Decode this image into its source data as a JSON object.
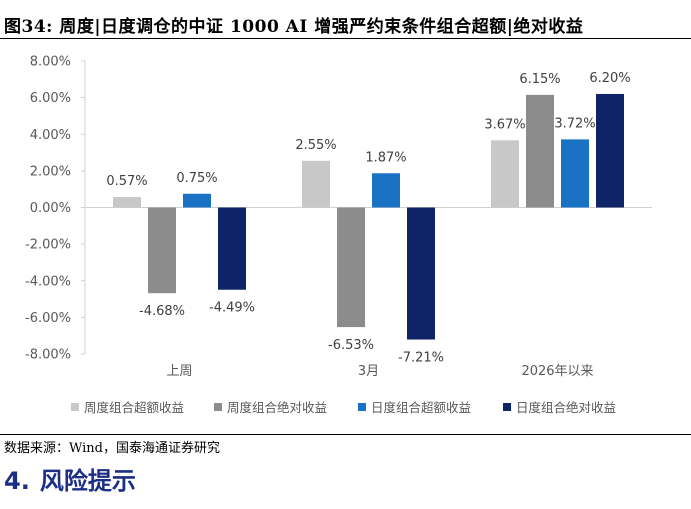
{
  "header": {
    "top_text_fragment": "",
    "figure_title": "图34:  周度|日度调仓的中证 1000 AI 增强严约束条件组合超额|绝对收益"
  },
  "chart_data": {
    "type": "bar",
    "categories": [
      "上周",
      "3月",
      "2026年以来"
    ],
    "series": [
      {
        "name": "周度组合超额收益",
        "color": "#c8c8c8",
        "values": [
          0.57,
          2.55,
          3.67
        ]
      },
      {
        "name": "周度组合绝对收益",
        "color": "#8c8c8c",
        "values": [
          -4.68,
          -6.53,
          6.15
        ]
      },
      {
        "name": "日度组合超额收益",
        "color": "#1a72c4",
        "values": [
          0.75,
          1.87,
          3.72
        ]
      },
      {
        "name": "日度组合绝对收益",
        "color": "#0f2466",
        "values": [
          -4.49,
          -7.21,
          6.2
        ]
      }
    ],
    "value_labels": [
      [
        "0.57%",
        "2.55%",
        "3.67%"
      ],
      [
        "-4.68%",
        "-6.53%",
        "6.15%"
      ],
      [
        "0.75%",
        "1.87%",
        "3.72%"
      ],
      [
        "-4.49%",
        "-7.21%",
        "6.20%"
      ]
    ],
    "ylim": [
      -8,
      8
    ],
    "ytick_values": [
      8,
      6,
      4,
      2,
      0,
      -2,
      -4,
      -6,
      -8
    ],
    "ytick_labels": [
      "8.00%",
      "6.00%",
      "4.00%",
      "2.00%",
      "0.00%",
      "-2.00%",
      "-4.00%",
      "-6.00%",
      "-8.00%"
    ],
    "title": "",
    "xlabel": "",
    "ylabel": "",
    "legend_position": "bottom",
    "grid": false
  },
  "footer": {
    "source": "数据来源：Wind，国泰海通证券研究",
    "section_number": "4.",
    "section_title": "风险提示",
    "bottom_text_fragment": ""
  }
}
